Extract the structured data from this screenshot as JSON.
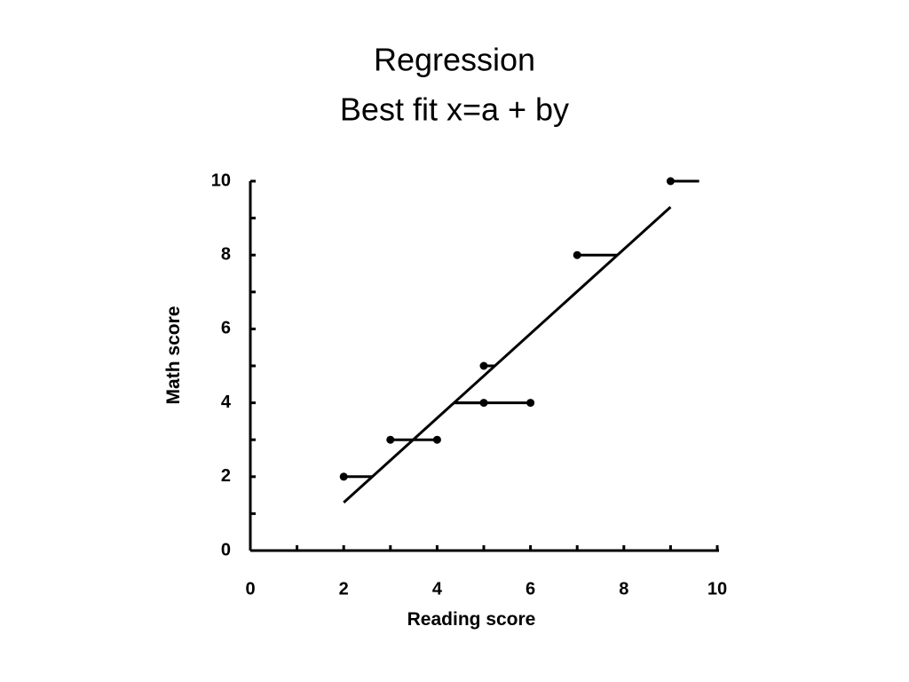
{
  "chart_data": {
    "type": "scatter",
    "title": [
      "Regression",
      "Best fit x=a + by"
    ],
    "x_label": "Reading score",
    "y_label": "Math score",
    "x": [
      2,
      3,
      4,
      5,
      5,
      6,
      7,
      9
    ],
    "y": [
      2,
      3,
      3,
      5,
      4,
      4,
      8,
      10
    ],
    "color": "#000000",
    "fit_line": {
      "x": [
        2,
        9
      ],
      "y": [
        1.3,
        9.3
      ]
    },
    "xlim": [
      0,
      10
    ],
    "ylim": [
      0,
      10
    ],
    "xticks": [
      0,
      2,
      4,
      6,
      8,
      10
    ],
    "yticks": [
      0,
      2,
      4,
      6,
      8,
      10
    ],
    "xminorticks": [
      1,
      3,
      5,
      7,
      9
    ],
    "yminorticks": [
      1,
      3,
      5,
      7,
      9
    ],
    "grid": false
  }
}
